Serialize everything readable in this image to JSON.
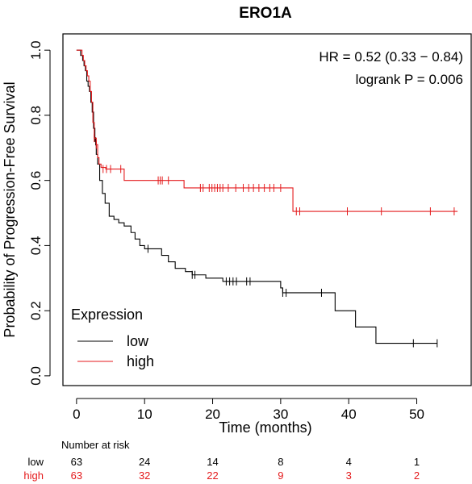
{
  "chart_data": {
    "type": "line",
    "title": "ERO1A",
    "xlabel": "Time (months)",
    "ylabel": "Probability of Progression-Free Survival",
    "xlim": [
      -2,
      58
    ],
    "ylim": [
      -0.03,
      1.05
    ],
    "xticks": [
      0,
      10,
      20,
      30,
      40,
      50
    ],
    "yticks": [
      "0.0",
      "0.2",
      "0.4",
      "0.6",
      "0.8",
      "1.0"
    ],
    "annotations": [
      "HR = 0.52 (0.33 − 0.84)",
      "logrank P = 0.006"
    ],
    "legend": {
      "title": "Expression",
      "position": "bottom-left",
      "entries": [
        {
          "label": "low",
          "color": "#000000"
        },
        {
          "label": "high",
          "color": "#e41a1c"
        }
      ]
    },
    "series": [
      {
        "name": "low",
        "color": "#000000",
        "steps": [
          [
            0,
            1.0
          ],
          [
            0.6,
            0.984
          ],
          [
            0.9,
            0.968
          ],
          [
            1.1,
            0.952
          ],
          [
            1.3,
            0.937
          ],
          [
            1.5,
            0.905
          ],
          [
            1.7,
            0.889
          ],
          [
            1.9,
            0.873
          ],
          [
            2.1,
            0.84
          ],
          [
            2.3,
            0.81
          ],
          [
            2.5,
            0.76
          ],
          [
            2.7,
            0.72
          ],
          [
            2.9,
            0.68
          ],
          [
            3.1,
            0.65
          ],
          [
            3.4,
            0.6
          ],
          [
            3.8,
            0.56
          ],
          [
            4.2,
            0.53
          ],
          [
            4.8,
            0.49
          ],
          [
            5.5,
            0.48
          ],
          [
            6.2,
            0.47
          ],
          [
            7.0,
            0.46
          ],
          [
            8.0,
            0.44
          ],
          [
            8.6,
            0.42
          ],
          [
            9.3,
            0.4
          ],
          [
            10.0,
            0.39
          ],
          [
            12.5,
            0.37
          ],
          [
            13.5,
            0.35
          ],
          [
            14.5,
            0.33
          ],
          [
            16.0,
            0.32
          ],
          [
            17.0,
            0.31
          ],
          [
            19.0,
            0.3
          ],
          [
            21.5,
            0.29
          ],
          [
            30.0,
            0.27
          ],
          [
            30.3,
            0.255
          ],
          [
            38.0,
            0.2
          ],
          [
            41.0,
            0.15
          ],
          [
            44.0,
            0.1
          ],
          [
            53.0,
            0.1
          ]
        ],
        "censors": [
          [
            2.8,
            0.72
          ],
          [
            10.5,
            0.39
          ],
          [
            17.0,
            0.31
          ],
          [
            17.4,
            0.31
          ],
          [
            22.0,
            0.29
          ],
          [
            22.5,
            0.29
          ],
          [
            23.0,
            0.29
          ],
          [
            23.5,
            0.29
          ],
          [
            25.0,
            0.29
          ],
          [
            25.5,
            0.29
          ],
          [
            30.3,
            0.255
          ],
          [
            30.8,
            0.255
          ],
          [
            36.0,
            0.255
          ],
          [
            49.5,
            0.1
          ],
          [
            53.0,
            0.1
          ]
        ]
      },
      {
        "name": "high",
        "color": "#e41a1c",
        "steps": [
          [
            0,
            1.0
          ],
          [
            0.8,
            0.984
          ],
          [
            1.0,
            0.968
          ],
          [
            1.2,
            0.952
          ],
          [
            1.4,
            0.937
          ],
          [
            1.6,
            0.921
          ],
          [
            1.8,
            0.905
          ],
          [
            2.0,
            0.873
          ],
          [
            2.2,
            0.84
          ],
          [
            2.4,
            0.778
          ],
          [
            2.6,
            0.73
          ],
          [
            2.9,
            0.71
          ],
          [
            3.1,
            0.67
          ],
          [
            3.3,
            0.65
          ],
          [
            3.6,
            0.64
          ],
          [
            4.3,
            0.635
          ],
          [
            7.0,
            0.6
          ],
          [
            15.8,
            0.577
          ],
          [
            31.8,
            0.505
          ],
          [
            56.0,
            0.505
          ]
        ],
        "censors": [
          [
            2.6,
            0.73
          ],
          [
            2.9,
            0.71
          ],
          [
            3.9,
            0.635
          ],
          [
            4.4,
            0.635
          ],
          [
            5.0,
            0.635
          ],
          [
            6.5,
            0.635
          ],
          [
            12.0,
            0.6
          ],
          [
            12.3,
            0.6
          ],
          [
            12.6,
            0.6
          ],
          [
            13.5,
            0.6
          ],
          [
            18.2,
            0.577
          ],
          [
            18.6,
            0.577
          ],
          [
            19.5,
            0.577
          ],
          [
            19.9,
            0.577
          ],
          [
            20.3,
            0.577
          ],
          [
            20.7,
            0.577
          ],
          [
            21.1,
            0.577
          ],
          [
            21.5,
            0.577
          ],
          [
            22.3,
            0.577
          ],
          [
            23.4,
            0.577
          ],
          [
            24.5,
            0.577
          ],
          [
            25.3,
            0.577
          ],
          [
            26.0,
            0.577
          ],
          [
            26.8,
            0.577
          ],
          [
            27.6,
            0.577
          ],
          [
            28.4,
            0.577
          ],
          [
            29.0,
            0.577
          ],
          [
            30.0,
            0.577
          ],
          [
            32.3,
            0.505
          ],
          [
            32.8,
            0.505
          ],
          [
            39.8,
            0.505
          ],
          [
            44.8,
            0.505
          ],
          [
            52.0,
            0.505
          ],
          [
            55.5,
            0.505
          ]
        ]
      }
    ],
    "risk_table": {
      "header": "Number at risk",
      "times": [
        0,
        10,
        20,
        30,
        40,
        50
      ],
      "rows": [
        {
          "label": "low",
          "color": "#000000",
          "counts": [
            "63",
            "24",
            "14",
            "8",
            "4",
            "1"
          ]
        },
        {
          "label": "high",
          "color": "#e41a1c",
          "counts": [
            "63",
            "32",
            "22",
            "9",
            "3",
            "2"
          ]
        }
      ]
    }
  }
}
